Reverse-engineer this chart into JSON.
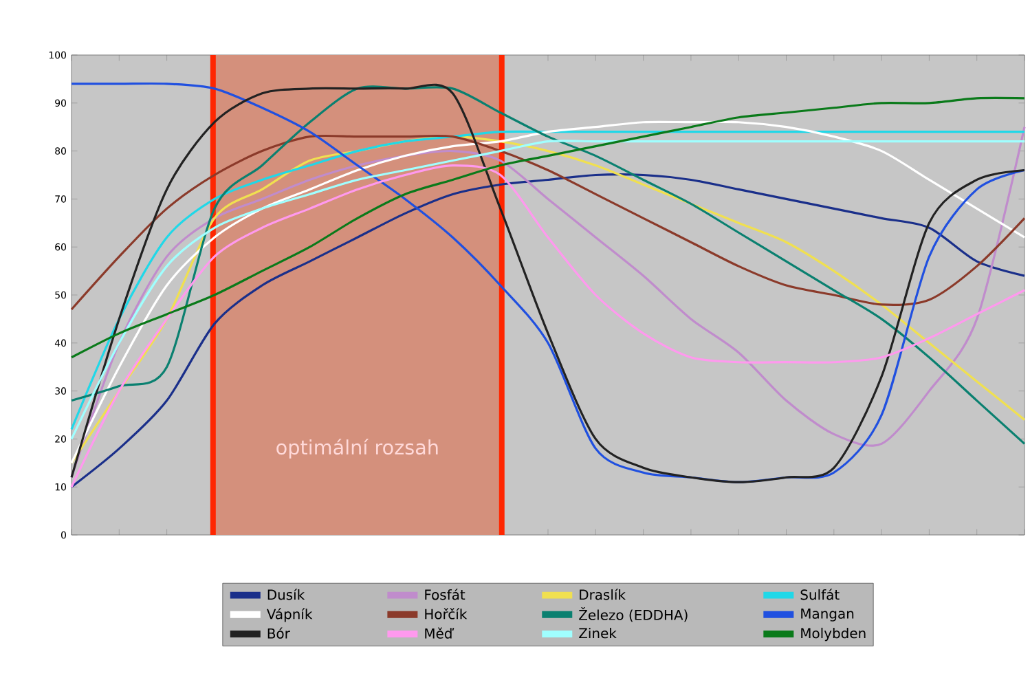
{
  "chart_data": {
    "type": "line",
    "categories": [
      null,
      null,
      null,
      null,
      null,
      null,
      null,
      null,
      null,
      null,
      null,
      null,
      null,
      null,
      null,
      null,
      null,
      null,
      null,
      null,
      null
    ],
    "ylim": [
      0,
      100
    ],
    "yticks": [
      0,
      10,
      20,
      30,
      40,
      50,
      60,
      70,
      80,
      90,
      100
    ],
    "grid": false,
    "legend": "bottom",
    "tick_labels": "y",
    "marker": "none",
    "line_style": "solid",
    "annotations": [
      "optimální rozsah"
    ],
    "series": [
      {
        "name": "Dusík",
        "color": "#1a2f8a",
        "values": [
          10,
          18,
          28,
          44,
          52,
          57,
          62,
          67,
          71,
          73,
          74,
          75,
          75,
          74,
          72,
          70,
          68,
          66,
          64,
          57,
          54
        ]
      },
      {
        "name": "Fosfát",
        "color": "#c08ccc",
        "values": [
          12,
          40,
          58,
          66,
          70,
          74,
          77,
          79,
          80,
          78,
          70,
          62,
          54,
          45,
          38,
          28,
          21,
          19,
          30,
          45,
          85
        ]
      },
      {
        "name": "Draslík",
        "color": "#f0e050",
        "values": [
          15,
          30,
          45,
          66,
          72,
          78,
          80,
          82,
          83,
          82,
          80,
          77,
          73,
          69,
          65,
          61,
          55,
          48,
          40,
          32,
          24
        ]
      },
      {
        "name": "Sulfát",
        "color": "#20d8e8",
        "values": [
          22,
          45,
          62,
          70,
          74,
          77,
          80,
          82,
          83,
          84,
          84,
          84,
          84,
          84,
          84,
          84,
          84,
          84,
          84,
          84,
          84
        ]
      },
      {
        "name": "Vápník",
        "color": "#ffffff",
        "values": [
          15,
          35,
          52,
          62,
          68,
          72,
          76,
          79,
          81,
          82,
          84,
          85,
          86,
          86,
          86,
          85,
          83,
          80,
          74,
          68,
          62
        ]
      },
      {
        "name": "Hořčík",
        "color": "#8b3a2a",
        "values": [
          47,
          58,
          68,
          75,
          80,
          83,
          83,
          83,
          83,
          80,
          76,
          71,
          66,
          61,
          56,
          52,
          50,
          48,
          49,
          56,
          66
        ]
      },
      {
        "name": "Železo (EDDHA)",
        "color": "#0a8070",
        "values": [
          28,
          31,
          35,
          68,
          77,
          86,
          93,
          93,
          93,
          88,
          83,
          79,
          74,
          69,
          63,
          57,
          51,
          45,
          37,
          28,
          19
        ]
      },
      {
        "name": "Mangan",
        "color": "#2050e0",
        "values": [
          94,
          94,
          94,
          93,
          89,
          84,
          77,
          70,
          62,
          52,
          40,
          18,
          13,
          12,
          11,
          12,
          13,
          25,
          58,
          72,
          76
        ]
      },
      {
        "name": "Bór",
        "color": "#222222",
        "values": [
          12,
          45,
          72,
          86,
          92,
          93,
          93,
          93,
          92,
          68,
          42,
          20,
          14,
          12,
          11,
          12,
          14,
          33,
          65,
          74,
          76
        ]
      },
      {
        "name": "Měď",
        "color": "#ff99ee",
        "values": [
          10,
          30,
          45,
          58,
          64,
          68,
          72,
          75,
          77,
          75,
          62,
          50,
          42,
          37,
          36,
          36,
          36,
          37,
          41,
          46,
          51
        ]
      },
      {
        "name": "Zinek",
        "color": "#a0ffff",
        "values": [
          20,
          40,
          56,
          64,
          68,
          71,
          74,
          76,
          78,
          80,
          82,
          82,
          82,
          82,
          82,
          82,
          82,
          82,
          82,
          82,
          82
        ]
      },
      {
        "name": "Molybden",
        "color": "#0a7a1a",
        "values": [
          37,
          42,
          46,
          50,
          55,
          60,
          66,
          71,
          74,
          77,
          79,
          81,
          83,
          85,
          87,
          88,
          89,
          90,
          90,
          91,
          91
        ]
      }
    ]
  }
}
